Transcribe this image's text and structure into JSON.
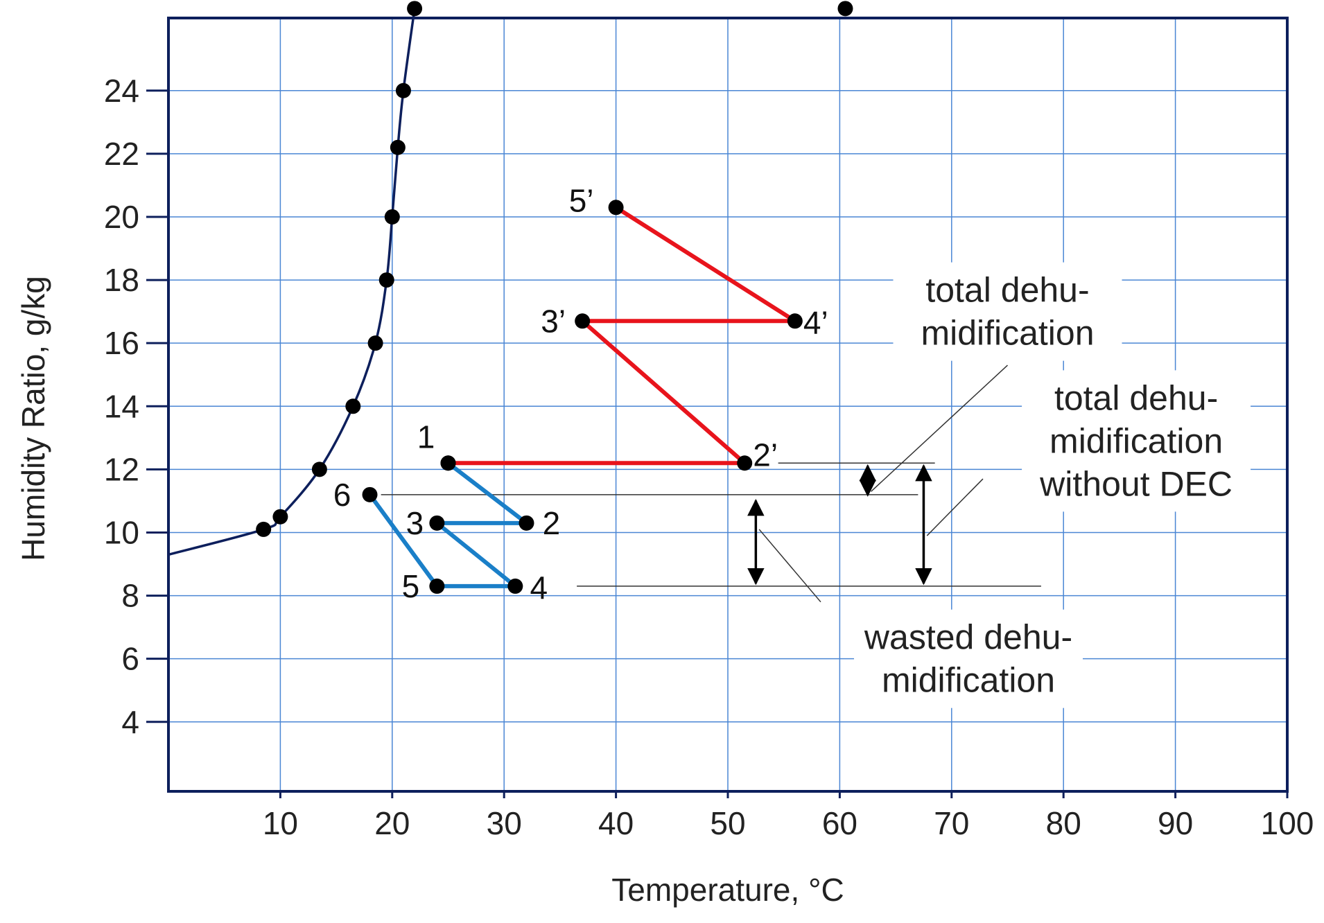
{
  "chart_data": {
    "type": "line",
    "title": "",
    "xlabel": "Temperature, °C",
    "ylabel": "Humidity Ratio, g/kg",
    "xlim": [
      0,
      100
    ],
    "ylim": [
      1.8,
      26.3
    ],
    "x_ticks": [
      10,
      20,
      30,
      40,
      50,
      60,
      70,
      80,
      90,
      100
    ],
    "y_ticks": [
      4,
      6,
      8,
      10,
      12,
      14,
      16,
      18,
      20,
      22,
      24
    ],
    "grid": true,
    "colors": {
      "frame": "#0d1f5c",
      "grid": "#4a86d4",
      "saturation": "#0d1f5c",
      "cycle_dec": "#1a7fc8",
      "cycle_no_dec": "#e8141c",
      "marker": "#000000",
      "annotation": "#000000",
      "leader": "#333333"
    },
    "saturation_curve": {
      "x": [
        0,
        8.5,
        10,
        13.5,
        16.5,
        18.5,
        19.5,
        20,
        20.5,
        21,
        22
      ],
      "y": [
        9.3,
        10.1,
        10.5,
        12.0,
        14.0,
        16.0,
        18.0,
        20.0,
        22.2,
        24.0,
        26.6
      ]
    },
    "saturation_markers": {
      "x": [
        8.5,
        10,
        13.5,
        16.5,
        18.5,
        19.5,
        20,
        20.5,
        21,
        22
      ],
      "y": [
        10.1,
        10.5,
        12.0,
        14.0,
        16.0,
        18.0,
        20.0,
        22.2,
        24.0,
        26.6
      ]
    },
    "top_marker": {
      "x": 60.5,
      "y": 26.6
    },
    "series": [
      {
        "points": [
          {
            "label": "1",
            "x": 25,
            "y": 12.2
          },
          {
            "label": "2",
            "x": 32,
            "y": 10.3
          },
          {
            "label": "3",
            "x": 24,
            "y": 10.3
          },
          {
            "label": "4",
            "x": 31,
            "y": 8.3
          },
          {
            "label": "5",
            "x": 24,
            "y": 8.3
          },
          {
            "label": "6",
            "x": 18,
            "y": 11.2
          }
        ]
      },
      {
        "points": [
          {
            "label": "1",
            "x": 25,
            "y": 12.2
          },
          {
            "label": "2’",
            "x": 51.5,
            "y": 12.2
          },
          {
            "label": "3’",
            "x": 37,
            "y": 16.7
          },
          {
            "label": "4’",
            "x": 56,
            "y": 16.7
          },
          {
            "label": "5’",
            "x": 40,
            "y": 20.3
          }
        ]
      }
    ],
    "annotations": [
      {
        "lines": [
          "total dehu-",
          "midification"
        ],
        "range": {
          "x": 62.5,
          "y0": 11.1,
          "y1": 12.2
        },
        "text_anchor": {
          "x": 75,
          "y": 17.0
        }
      },
      {
        "lines": [
          "total dehu-",
          "midification",
          "without DEC"
        ],
        "range": {
          "x": 67.5,
          "y0": 8.3,
          "y1": 12.2
        },
        "text_anchor": {
          "x": 86.5,
          "y": 12.9
        }
      },
      {
        "lines": [
          "wasted dehu-",
          "midification"
        ],
        "range": {
          "x": 52.5,
          "y0": 8.3,
          "y1": 11.1
        },
        "text_anchor": {
          "x": 71.5,
          "y": 6.0
        }
      }
    ]
  }
}
